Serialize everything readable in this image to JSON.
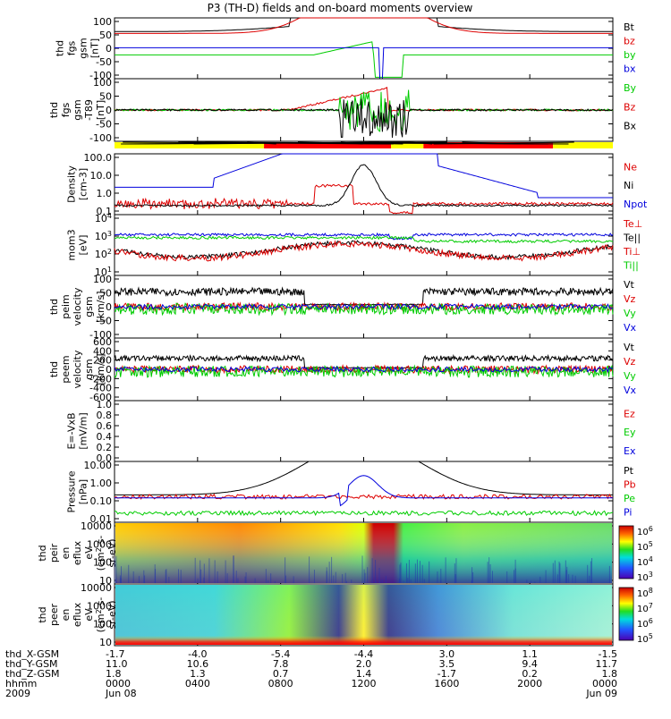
{
  "title": "P3 (TH-D) fields and on-board moments overview",
  "colors": {
    "black": "#000000",
    "red": "#dd0000",
    "green": "#00cc00",
    "blue": "#0000dd",
    "yellow": "#ffff00",
    "barred": "#ff0000",
    "ez": "#dd0000",
    "ey": "#00cc00",
    "ex": "#0000dd"
  },
  "chart_data": [
    {
      "type": "line",
      "id": "p1",
      "ylabel": [
        "thd",
        "fgs",
        "gsm",
        "[nT]"
      ],
      "yticks": [
        "100",
        "50",
        "0",
        "-50",
        "-100"
      ],
      "ylim": [
        -100,
        100
      ],
      "legend": [
        {
          "name": "Bt",
          "color": "black"
        },
        {
          "name": "bz",
          "color": "red"
        },
        {
          "name": "by",
          "color": "green"
        },
        {
          "name": "bx",
          "color": "blue"
        }
      ]
    },
    {
      "type": "line",
      "id": "p2",
      "ylabel": [
        "thd",
        "fgs",
        "gsm",
        "-T89",
        "[nT]"
      ],
      "yticks": [
        "100",
        "50",
        "0",
        "-50",
        "-100"
      ],
      "ylim": [
        -120,
        120
      ],
      "legend": [
        {
          "name": "By",
          "color": "green"
        },
        {
          "name": "Bz",
          "color": "red"
        },
        {
          "name": "Bx",
          "color": "black"
        }
      ]
    },
    {
      "type": "bar",
      "id": "modebar",
      "segments": [
        {
          "color": "yellow",
          "from": 0.0,
          "to": 0.3
        },
        {
          "color": "barred",
          "from": 0.3,
          "to": 0.555
        },
        {
          "color": "yellow",
          "from": 0.555,
          "to": 0.62
        },
        {
          "color": "barred",
          "from": 0.62,
          "to": 0.88
        },
        {
          "color": "yellow",
          "from": 0.88,
          "to": 1.0
        }
      ]
    },
    {
      "type": "line",
      "id": "p3",
      "scale": "log",
      "ylabel": [
        "Density",
        "[cm-3]"
      ],
      "yticks": [
        "100.0",
        "10.0",
        "1.0",
        "0.1"
      ],
      "legend": [
        {
          "name": "Ne",
          "color": "red"
        },
        {
          "name": "Ni",
          "color": "black"
        },
        {
          "name": "Npot",
          "color": "blue"
        }
      ]
    },
    {
      "type": "line",
      "id": "p4",
      "scale": "log",
      "ylabel": [
        "mom3",
        "[eV]"
      ],
      "yticks": [
        "10^4",
        "10^3",
        "10^2",
        "10^1"
      ],
      "legend": [
        {
          "name": "Te⊥",
          "color": "red"
        },
        {
          "name": "Te||",
          "color": "black"
        },
        {
          "name": "Ti⊥",
          "color": "red"
        },
        {
          "name": "Ti||",
          "color": "green"
        }
      ]
    },
    {
      "type": "line",
      "id": "p5",
      "ylabel": [
        "thd",
        "peim",
        "velocity",
        "gsm",
        "[km/s]"
      ],
      "yticks": [
        "100",
        "50",
        "0",
        "-50",
        "-100"
      ],
      "ylim": [
        -100,
        100
      ],
      "legend": [
        {
          "name": "Vt",
          "color": "black"
        },
        {
          "name": "Vz",
          "color": "red"
        },
        {
          "name": "Vy",
          "color": "green"
        },
        {
          "name": "Vx",
          "color": "blue"
        }
      ]
    },
    {
      "type": "line",
      "id": "p6",
      "ylabel": [
        "thd",
        "peem",
        "velocity",
        "gsm",
        "[km/s]"
      ],
      "yticks": [
        "600",
        "400",
        "200",
        "0",
        "-200",
        "-400",
        "-600"
      ],
      "ylim": [
        -600,
        600
      ],
      "legend": [
        {
          "name": "Vt",
          "color": "black"
        },
        {
          "name": "Vz",
          "color": "red"
        },
        {
          "name": "Vy",
          "color": "green"
        },
        {
          "name": "Vx",
          "color": "blue"
        }
      ]
    },
    {
      "type": "line",
      "id": "p7",
      "ylabel": [
        "E=-VxB",
        "[mV/m]"
      ],
      "yticks": [
        "1.0",
        "0.8",
        "0.6",
        "0.4",
        "0.2",
        "0.0"
      ],
      "ylim": [
        0,
        1
      ],
      "legend": [
        {
          "name": "Ez",
          "color": "ez"
        },
        {
          "name": "Ey",
          "color": "ey"
        },
        {
          "name": "Ex",
          "color": "ex"
        }
      ]
    },
    {
      "type": "line",
      "id": "p8",
      "scale": "log",
      "ylabel": [
        "Pressure",
        "[nPa]"
      ],
      "yticks": [
        "10.00",
        "1.00",
        "0.10",
        "0.01"
      ],
      "legend": [
        {
          "name": "Pt",
          "color": "black"
        },
        {
          "name": "Pb",
          "color": "red"
        },
        {
          "name": "Pe",
          "color": "green"
        },
        {
          "name": "Pi",
          "color": "blue"
        }
      ]
    },
    {
      "type": "heatmap",
      "id": "p9",
      "ylabel": [
        "thd",
        "peir",
        "en",
        "eflux",
        "eV",
        "(cm^2-s-",
        "sr-eV)"
      ],
      "yticks": [
        "10000",
        "1000",
        "100",
        "10"
      ],
      "colorbar": [
        "10^6",
        "10^5",
        "10^4",
        "10^3"
      ]
    },
    {
      "type": "heatmap",
      "id": "p10",
      "ylabel": [
        "thd",
        "peer",
        "en",
        "eflux",
        "eV",
        "(cm^2-s-",
        "sr-eV)"
      ],
      "yticks": [
        "10000",
        "1000",
        "100",
        "10"
      ],
      "colorbar": [
        "10^8",
        "10^7",
        "10^6",
        "10^5"
      ]
    }
  ],
  "xaxis": {
    "row_labels": [
      "thd_X-GSM",
      "thd_Y-GSM",
      "thd_Z-GSM",
      "hhmm",
      "2009"
    ],
    "columns": [
      {
        "x": [
          "-1.7",
          "11.0",
          "1.8",
          "0000",
          "Jun 08"
        ]
      },
      {
        "x": [
          "-4.0",
          "10.6",
          "1.3",
          "0400",
          ""
        ]
      },
      {
        "x": [
          "-5.4",
          "7.8",
          "0.7",
          "0800",
          ""
        ]
      },
      {
        "x": [
          "-4.4",
          "2.0",
          "1.4",
          "1200",
          ""
        ]
      },
      {
        "x": [
          "3.0",
          "3.5",
          "-1.7",
          "1600",
          ""
        ]
      },
      {
        "x": [
          "1.1",
          "9.4",
          "0.2",
          "2000",
          ""
        ]
      },
      {
        "x": [
          "-1.5",
          "11.7",
          "1.8",
          "0000",
          "Jun 09"
        ]
      }
    ]
  }
}
